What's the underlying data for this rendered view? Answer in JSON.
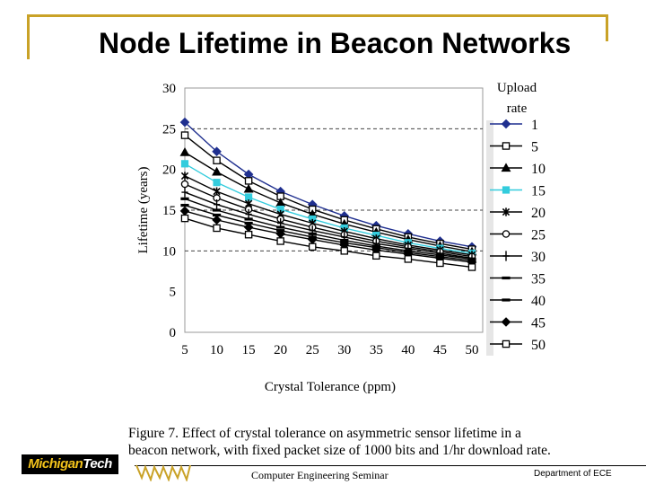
{
  "slide": {
    "title": "Node Lifetime in Beacon Networks",
    "figure_caption_line1": "Figure 7.   Effect of crystal tolerance on asymmetric sensor lifetime in a",
    "figure_caption_line2": "beacon network, with fixed packet size of 1000 bits and 1/hr download rate.",
    "footer_center": "Computer Engineering Seminar",
    "footer_right": "Department of ECE",
    "logo_text": "MichiganTech"
  },
  "colors": {
    "frame": "#c9a227",
    "logo_bg": "#000000",
    "logo_text": "#f2c21b",
    "series_blue": "#1f2f8f",
    "series_cyan": "#33ccdd"
  },
  "chart_data": {
    "type": "line",
    "title": "",
    "xlabel": "Crystal Tolerance (ppm)",
    "ylabel": "Lifetime (years)",
    "legend_title_line1": "Upload",
    "legend_title_line2": "rate",
    "legend_position": "right",
    "x": [
      5,
      10,
      15,
      20,
      25,
      30,
      35,
      40,
      45,
      50
    ],
    "xlim": [
      5,
      50
    ],
    "ylim": [
      0,
      30
    ],
    "yticks": [
      0,
      5,
      10,
      15,
      20,
      25,
      30
    ],
    "dashed_reference_lines": [
      25,
      15,
      10
    ],
    "series": [
      {
        "name": "1",
        "color": "#1f2f8f",
        "marker": "diamond",
        "values": [
          25.8,
          22.2,
          19.4,
          17.3,
          15.7,
          14.3,
          13.1,
          12.1,
          11.2,
          10.5
        ]
      },
      {
        "name": "5",
        "color": "#000000",
        "marker": "square-open",
        "values": [
          24.2,
          21.1,
          18.6,
          16.7,
          15.1,
          13.8,
          12.7,
          11.7,
          10.9,
          10.2
        ]
      },
      {
        "name": "10",
        "color": "#000000",
        "marker": "triangle",
        "values": [
          22.1,
          19.7,
          17.6,
          15.9,
          14.5,
          13.3,
          12.3,
          11.4,
          10.6,
          9.9
        ]
      },
      {
        "name": "15",
        "color": "#33ccdd",
        "marker": "square",
        "values": [
          20.7,
          18.4,
          16.6,
          15.1,
          13.9,
          12.8,
          11.9,
          11.0,
          10.3,
          9.7
        ]
      },
      {
        "name": "20",
        "color": "#000000",
        "marker": "star",
        "values": [
          19.2,
          17.3,
          15.8,
          14.5,
          13.4,
          12.4,
          11.5,
          10.7,
          10.1,
          9.5
        ]
      },
      {
        "name": "25",
        "color": "#000000",
        "marker": "circle-open",
        "values": [
          18.2,
          16.5,
          15.1,
          13.9,
          12.9,
          12.0,
          11.2,
          10.5,
          9.9,
          9.3
        ]
      },
      {
        "name": "30",
        "color": "#000000",
        "marker": "plus",
        "values": [
          17.2,
          15.7,
          14.5,
          13.4,
          12.5,
          11.7,
          10.9,
          10.3,
          9.7,
          9.1
        ]
      },
      {
        "name": "35",
        "color": "#000000",
        "marker": "dash",
        "values": [
          16.4,
          15.0,
          13.9,
          12.9,
          12.1,
          11.3,
          10.6,
          10.0,
          9.5,
          9.0
        ]
      },
      {
        "name": "40",
        "color": "#000000",
        "marker": "dash",
        "values": [
          15.6,
          14.4,
          13.4,
          12.5,
          11.7,
          11.0,
          10.4,
          9.8,
          9.3,
          8.8
        ]
      },
      {
        "name": "45",
        "color": "#000000",
        "marker": "diamond",
        "values": [
          14.9,
          13.8,
          12.9,
          12.1,
          11.4,
          10.7,
          10.1,
          9.6,
          9.1,
          8.6
        ]
      },
      {
        "name": "50",
        "color": "#000000",
        "marker": "square-open",
        "values": [
          14.0,
          12.8,
          12.0,
          11.2,
          10.5,
          10.0,
          9.4,
          9.0,
          8.5,
          8.0
        ]
      }
    ]
  }
}
